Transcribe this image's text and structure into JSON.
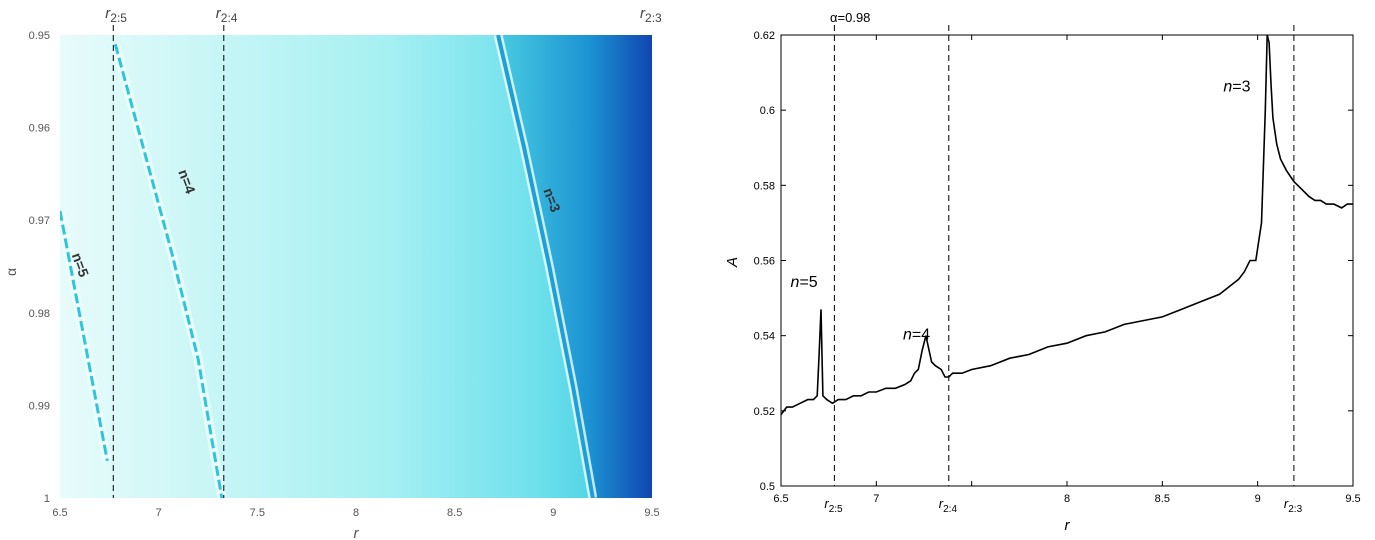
{
  "chart_data": [
    {
      "type": "heatmap",
      "title": "",
      "xlabel": "r",
      "ylabel": "α",
      "xlim": [
        6.5,
        9.5
      ],
      "ylim": [
        0.95,
        1.0
      ],
      "y_reversed": true,
      "x_ticks": [
        {
          "v": 6.5,
          "label": "6.5"
        },
        {
          "v": 7,
          "label": "7"
        },
        {
          "v": 7.5,
          "label": "7.5"
        },
        {
          "v": 8,
          "label": "8"
        },
        {
          "v": 8.5,
          "label": "8.5"
        },
        {
          "v": 9,
          "label": "9"
        },
        {
          "v": 9.5,
          "label": "9.5"
        }
      ],
      "y_ticks": [
        {
          "v": 0.95,
          "label": "0.95"
        },
        {
          "v": 0.96,
          "label": "0.96"
        },
        {
          "v": 0.97,
          "label": "0.97"
        },
        {
          "v": 0.98,
          "label": "0.98"
        },
        {
          "v": 0.99,
          "label": "0.99"
        },
        {
          "v": 1.0,
          "label": "1"
        }
      ],
      "resonances": [
        {
          "r": 6.77,
          "label_main": "r",
          "label_sub": "2:5"
        },
        {
          "r": 7.33,
          "label_main": "r",
          "label_sub": "2:4"
        },
        {
          "r": 9.48,
          "label_main": "r",
          "label_sub": "2:3"
        }
      ],
      "ridges": [
        {
          "label": "n=5",
          "points": [
            [
              6.5,
              0.969
            ],
            [
              6.58,
              0.978
            ],
            [
              6.66,
              0.987
            ],
            [
              6.74,
              0.996
            ]
          ]
        },
        {
          "label": "n=4",
          "points": [
            [
              6.78,
              0.951
            ],
            [
              6.92,
              0.962
            ],
            [
              7.06,
              0.973
            ],
            [
              7.2,
              0.985
            ],
            [
              7.32,
              1.0
            ]
          ]
        },
        {
          "label": "n=3",
          "points": [
            [
              8.72,
              0.95
            ],
            [
              8.85,
              0.962
            ],
            [
              8.98,
              0.975
            ],
            [
              9.1,
              0.988
            ],
            [
              9.2,
              1.0
            ]
          ]
        }
      ],
      "colors": {
        "base": "#8feef0",
        "light": "#e6fbfb",
        "ridge": "#2ec5dc",
        "dark": "#0a2fa8"
      }
    },
    {
      "type": "line",
      "title": "α=0.98",
      "xlabel": "r",
      "ylabel": "A",
      "xlim": [
        6.5,
        9.5
      ],
      "ylim": [
        0.5,
        0.62
      ],
      "x_ticks": [
        {
          "v": 6.5,
          "label": "6.5"
        },
        {
          "v": 7,
          "label": "7"
        },
        {
          "v": 7.5,
          "label": ""
        },
        {
          "v": 8,
          "label": "8"
        },
        {
          "v": 8.5,
          "label": "8.5"
        },
        {
          "v": 9,
          "label": "9"
        },
        {
          "v": 9.5,
          "label": "9.5"
        }
      ],
      "y_ticks": [
        {
          "v": 0.5,
          "label": "0.5"
        },
        {
          "v": 0.52,
          "label": "0.52"
        },
        {
          "v": 0.54,
          "label": "0.54"
        },
        {
          "v": 0.56,
          "label": "0.56"
        },
        {
          "v": 0.58,
          "label": "0.58"
        },
        {
          "v": 0.6,
          "label": "0.6"
        },
        {
          "v": 0.62,
          "label": "0.62"
        }
      ],
      "resonances": [
        {
          "r": 6.78,
          "label_main": "r",
          "label_sub": "2:5"
        },
        {
          "r": 7.38,
          "label_main": "r",
          "label_sub": "2:4"
        },
        {
          "r": 9.19,
          "label_main": "r",
          "label_sub": "2:3"
        }
      ],
      "annotations": [
        {
          "text": "n=5",
          "x": 6.55,
          "y": 0.553
        },
        {
          "text": "n=4",
          "x": 7.14,
          "y": 0.539
        },
        {
          "text": "n=3",
          "x": 8.82,
          "y": 0.605
        }
      ],
      "series": [
        {
          "x": [
            6.5,
            6.53,
            6.56,
            6.6,
            6.64,
            6.67,
            6.69,
            6.7,
            6.71,
            6.72,
            6.74,
            6.77,
            6.8,
            6.84,
            6.88,
            6.92,
            6.96,
            7.0,
            7.05,
            7.1,
            7.15,
            7.18,
            7.2,
            7.22,
            7.24,
            7.26,
            7.29,
            7.31,
            7.34,
            7.36,
            7.38,
            7.4,
            7.45,
            7.5,
            7.6,
            7.7,
            7.8,
            7.9,
            8.0,
            8.1,
            8.2,
            8.3,
            8.4,
            8.5,
            8.6,
            8.7,
            8.8,
            8.85,
            8.9,
            8.93,
            8.96,
            8.99,
            9.02,
            9.04,
            9.05,
            9.06,
            9.07,
            9.08,
            9.1,
            9.12,
            9.15,
            9.19,
            9.23,
            9.27,
            9.3,
            9.33,
            9.36,
            9.4,
            9.44,
            9.47,
            9.5
          ],
          "y": [
            0.519,
            0.521,
            0.521,
            0.522,
            0.523,
            0.523,
            0.524,
            0.535,
            0.547,
            0.524,
            0.523,
            0.522,
            0.523,
            0.523,
            0.524,
            0.524,
            0.525,
            0.525,
            0.526,
            0.526,
            0.527,
            0.528,
            0.53,
            0.531,
            0.536,
            0.54,
            0.533,
            0.532,
            0.531,
            0.529,
            0.529,
            0.53,
            0.53,
            0.531,
            0.532,
            0.534,
            0.535,
            0.537,
            0.538,
            0.54,
            0.541,
            0.543,
            0.544,
            0.545,
            0.547,
            0.549,
            0.551,
            0.553,
            0.555,
            0.557,
            0.56,
            0.56,
            0.57,
            0.6,
            0.62,
            0.618,
            0.607,
            0.598,
            0.591,
            0.587,
            0.584,
            0.581,
            0.579,
            0.577,
            0.576,
            0.576,
            0.575,
            0.575,
            0.574,
            0.575,
            0.575
          ]
        }
      ]
    }
  ]
}
